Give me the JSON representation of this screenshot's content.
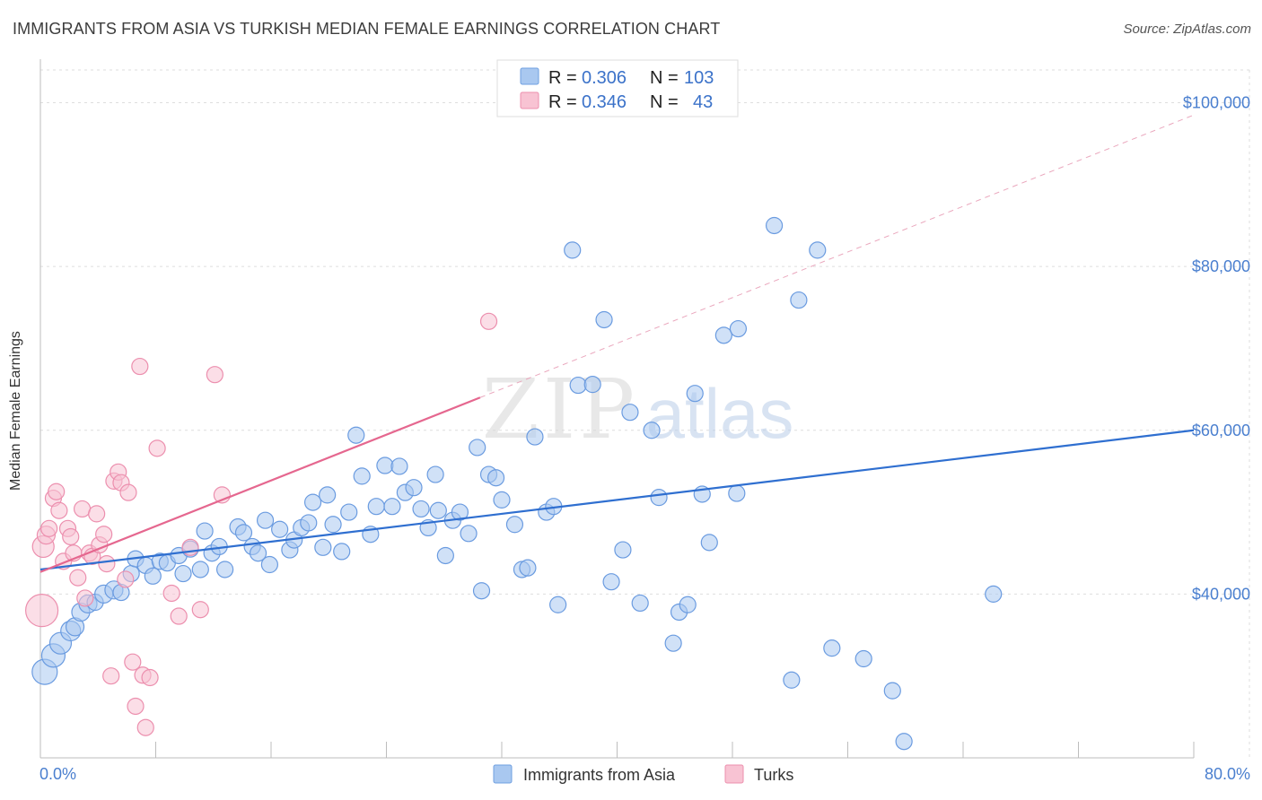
{
  "title": "IMMIGRANTS FROM ASIA VS TURKISH MEDIAN FEMALE EARNINGS CORRELATION CHART",
  "source": "Source: ZipAtlas.com",
  "watermark": {
    "zip": "ZIP",
    "atlas": "atlas"
  },
  "legend": {
    "r_label": "R =",
    "n_label": "N =",
    "rows": [
      {
        "r": "0.306",
        "n": "103",
        "color": "#a9c8f0",
        "stroke": "#6f9fe0"
      },
      {
        "r": "0.346",
        "n": "43",
        "color": "#f8c3d3",
        "stroke": "#ec8fae"
      }
    ]
  },
  "chart_data": {
    "type": "scatter",
    "ylabel": "Median Female Earnings",
    "xlim": [
      0,
      80
    ],
    "ylim": [
      20000,
      104000
    ],
    "x_tick_labels": [
      "0.0%",
      "80.0%"
    ],
    "y_ticks": [
      40000,
      60000,
      80000,
      100000
    ],
    "y_tick_labels": [
      "$40,000",
      "$60,000",
      "$80,000",
      "$100,000"
    ],
    "grid": true,
    "colors": {
      "asia_fill": "#a9c8f0",
      "asia_stroke": "#6a9be0",
      "asia_line": "#2f6fd0",
      "turks_fill": "#f8c3d3",
      "turks_stroke": "#ec8fae",
      "turks_line": "#e5678f"
    },
    "series": [
      {
        "name": "Immigrants from Asia",
        "trend": {
          "x": [
            0,
            80
          ],
          "y": [
            43000,
            60000
          ]
        },
        "points": [
          [
            0.3,
            30500,
            14
          ],
          [
            0.9,
            32500,
            13
          ],
          [
            1.4,
            34000,
            12
          ],
          [
            2.1,
            35500,
            11
          ],
          [
            2.4,
            36000,
            10
          ],
          [
            2.8,
            37800,
            10
          ],
          [
            3.3,
            38800,
            10
          ],
          [
            3.8,
            39000,
            9
          ],
          [
            4.4,
            40000,
            10
          ],
          [
            5.1,
            40500,
            10
          ],
          [
            5.6,
            40200,
            9
          ],
          [
            6.3,
            42500,
            9
          ],
          [
            6.6,
            44300,
            9
          ],
          [
            7.3,
            43500,
            9
          ],
          [
            7.8,
            42200,
            9
          ],
          [
            8.3,
            44000,
            9
          ],
          [
            8.8,
            43800,
            9
          ],
          [
            9.6,
            44700,
            9
          ],
          [
            9.9,
            42500,
            9
          ],
          [
            10.4,
            45500,
            9
          ],
          [
            11.1,
            43000,
            9
          ],
          [
            11.4,
            47700,
            9
          ],
          [
            11.9,
            45000,
            9
          ],
          [
            12.4,
            45800,
            9
          ],
          [
            12.8,
            43000,
            9
          ],
          [
            13.7,
            48200,
            9
          ],
          [
            14.1,
            47500,
            9
          ],
          [
            14.7,
            45800,
            9
          ],
          [
            15.1,
            45000,
            9
          ],
          [
            15.6,
            49000,
            9
          ],
          [
            15.9,
            43600,
            9
          ],
          [
            16.6,
            47900,
            9
          ],
          [
            17.3,
            45400,
            9
          ],
          [
            17.6,
            46600,
            9
          ],
          [
            18.1,
            48100,
            9
          ],
          [
            18.6,
            48700,
            9
          ],
          [
            18.9,
            51200,
            9
          ],
          [
            19.6,
            45700,
            9
          ],
          [
            19.9,
            52100,
            9
          ],
          [
            20.3,
            48500,
            9
          ],
          [
            20.9,
            45200,
            9
          ],
          [
            21.4,
            50000,
            9
          ],
          [
            21.9,
            59400,
            9
          ],
          [
            22.3,
            54400,
            9
          ],
          [
            22.9,
            47300,
            9
          ],
          [
            23.3,
            50700,
            9
          ],
          [
            23.9,
            55700,
            9
          ],
          [
            24.4,
            50700,
            9
          ],
          [
            24.9,
            55600,
            9
          ],
          [
            25.3,
            52400,
            9
          ],
          [
            25.9,
            53000,
            9
          ],
          [
            26.4,
            50400,
            9
          ],
          [
            26.9,
            48100,
            9
          ],
          [
            27.4,
            54600,
            9
          ],
          [
            27.6,
            50200,
            9
          ],
          [
            28.1,
            44700,
            9
          ],
          [
            28.6,
            49000,
            9
          ],
          [
            29.1,
            50000,
            9
          ],
          [
            29.7,
            47400,
            9
          ],
          [
            30.3,
            57900,
            9
          ],
          [
            30.6,
            40400,
            9
          ],
          [
            31.1,
            54600,
            9
          ],
          [
            31.6,
            54200,
            9
          ],
          [
            32.0,
            51500,
            9
          ],
          [
            32.9,
            48500,
            9
          ],
          [
            33.4,
            43000,
            9
          ],
          [
            33.8,
            43200,
            9
          ],
          [
            34.3,
            59200,
            9
          ],
          [
            35.1,
            50000,
            9
          ],
          [
            35.6,
            50700,
            9
          ],
          [
            35.9,
            38700,
            9
          ],
          [
            36.9,
            82000,
            9
          ],
          [
            37.3,
            65500,
            9
          ],
          [
            38.3,
            65600,
            9
          ],
          [
            39.1,
            73500,
            9
          ],
          [
            39.6,
            41500,
            9
          ],
          [
            40.4,
            45400,
            9
          ],
          [
            40.9,
            62200,
            9
          ],
          [
            41.6,
            38900,
            9
          ],
          [
            42.4,
            60000,
            9
          ],
          [
            42.9,
            51800,
            9
          ],
          [
            43.9,
            34000,
            9
          ],
          [
            44.3,
            37800,
            9
          ],
          [
            44.9,
            38700,
            9
          ],
          [
            45.4,
            64500,
            9
          ],
          [
            45.9,
            52200,
            9
          ],
          [
            46.4,
            46300,
            9
          ],
          [
            47.4,
            71600,
            9
          ],
          [
            48.3,
            52300,
            9
          ],
          [
            48.4,
            72400,
            9
          ],
          [
            50.9,
            85000,
            9
          ],
          [
            52.1,
            29500,
            9
          ],
          [
            52.6,
            75900,
            9
          ],
          [
            53.9,
            82000,
            9
          ],
          [
            54.9,
            33400,
            9
          ],
          [
            57.1,
            32100,
            9
          ],
          [
            59.1,
            28200,
            9
          ],
          [
            59.9,
            22000,
            9
          ],
          [
            66.1,
            40000,
            9
          ]
        ]
      },
      {
        "name": "Turks",
        "trend": {
          "x": [
            0,
            30.5
          ],
          "y": [
            42700,
            64000
          ]
        },
        "trend_ext": {
          "x": [
            30.5,
            80
          ],
          "y": [
            64000,
            98500
          ]
        },
        "points": [
          [
            0.1,
            38000,
            18
          ],
          [
            0.2,
            45800,
            12
          ],
          [
            0.4,
            47200,
            10
          ],
          [
            0.6,
            48000,
            9
          ],
          [
            0.9,
            51700,
            9
          ],
          [
            1.1,
            52500,
            9
          ],
          [
            1.3,
            50200,
            9
          ],
          [
            1.6,
            44000,
            9
          ],
          [
            1.9,
            48000,
            9
          ],
          [
            2.1,
            47000,
            9
          ],
          [
            2.3,
            45000,
            9
          ],
          [
            2.6,
            42000,
            9
          ],
          [
            2.9,
            50400,
            9
          ],
          [
            3.1,
            39500,
            9
          ],
          [
            3.4,
            45000,
            9
          ],
          [
            3.6,
            44600,
            9
          ],
          [
            3.9,
            49800,
            9
          ],
          [
            4.1,
            46000,
            9
          ],
          [
            4.4,
            47300,
            9
          ],
          [
            4.6,
            43700,
            9
          ],
          [
            4.9,
            30000,
            9
          ],
          [
            5.1,
            53800,
            9
          ],
          [
            5.4,
            54900,
            9
          ],
          [
            5.6,
            53600,
            9
          ],
          [
            5.9,
            41800,
            9
          ],
          [
            6.1,
            52400,
            9
          ],
          [
            6.4,
            31700,
            9
          ],
          [
            6.6,
            26300,
            9
          ],
          [
            6.9,
            67800,
            9
          ],
          [
            7.1,
            30100,
            9
          ],
          [
            7.3,
            23700,
            9
          ],
          [
            7.6,
            29800,
            9
          ],
          [
            8.1,
            57800,
            9
          ],
          [
            9.1,
            40100,
            9
          ],
          [
            9.6,
            37300,
            9
          ],
          [
            10.4,
            45700,
            9
          ],
          [
            11.1,
            38100,
            9
          ],
          [
            12.1,
            66800,
            9
          ],
          [
            12.6,
            52100,
            9
          ],
          [
            31.1,
            73300,
            9
          ]
        ]
      }
    ]
  },
  "bottom_legend": [
    "Immigrants from Asia",
    "Turks"
  ]
}
